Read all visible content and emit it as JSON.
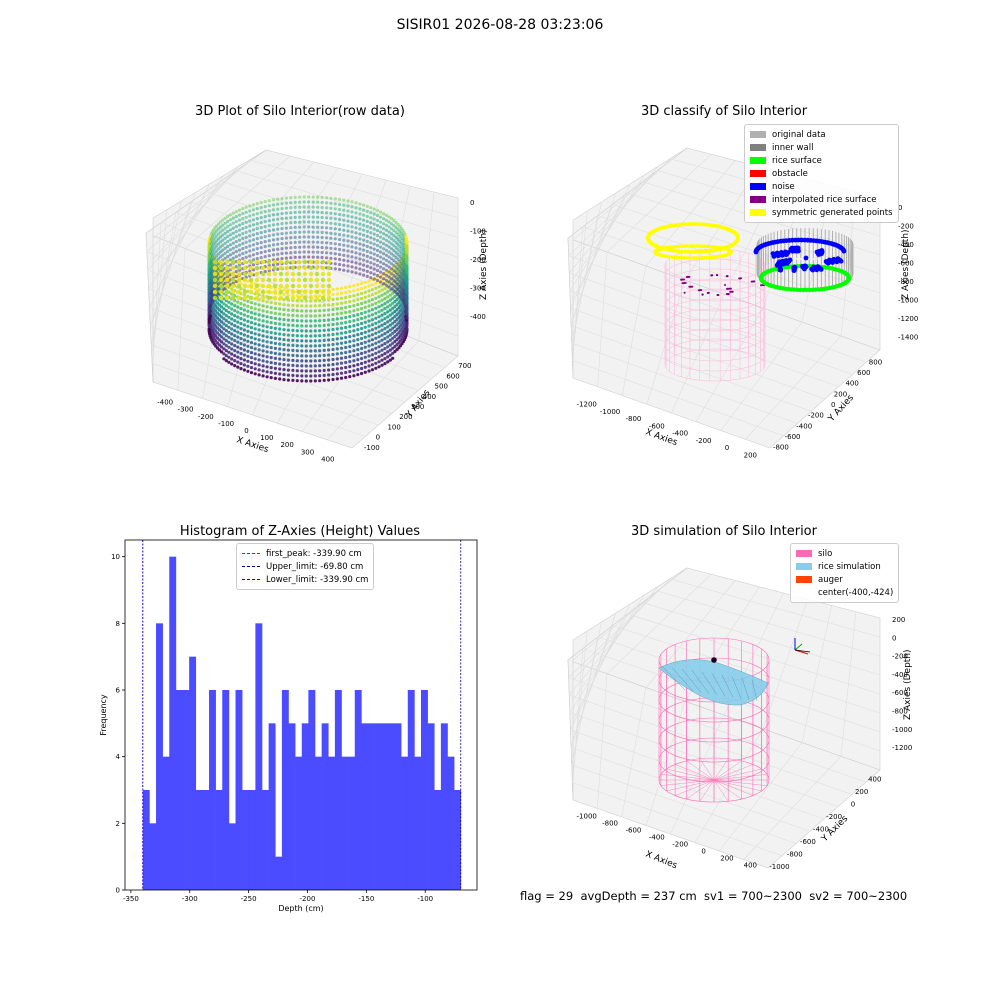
{
  "figure": {
    "suptitle": "SISIR01 2026-08-28 03:23:06",
    "footer": "flag = 29  avgDepth = 237 cm  sv1 = 700~2300  sv2 = 700~2300"
  },
  "chart_data": [
    {
      "type": "scatter",
      "title": "3D Plot of Silo Interior(row data)",
      "xlabel": "X Axies",
      "ylabel": "Y Axies",
      "zlabel": "Z Axies (Depth)",
      "xticks": [
        -400,
        -300,
        -200,
        -100,
        0,
        100,
        200,
        300,
        400
      ],
      "yticks": [
        -100,
        0,
        100,
        200,
        300,
        400,
        500,
        600,
        700
      ],
      "zticks": [
        0,
        -100,
        -200,
        -300,
        -400
      ],
      "colormap": "viridis"
    },
    {
      "type": "scatter",
      "title": "3D classify of Silo Interior",
      "xlabel": "X Axies",
      "ylabel": "Y Axies",
      "zlabel": "Z Axies (Depth)",
      "xticks": [
        -1200,
        -1000,
        -800,
        -600,
        -400,
        -200,
        0,
        200
      ],
      "yticks": [
        -800,
        -600,
        -400,
        -200,
        0,
        200,
        400,
        600,
        800
      ],
      "zticks": [
        0,
        -200,
        -400,
        -600,
        -800,
        -1000,
        -1200,
        -1400
      ],
      "legend": [
        {
          "label": "original data",
          "color": "#b0b0b0"
        },
        {
          "label": "inner wall",
          "color": "#808080"
        },
        {
          "label": "rice surface",
          "color": "#00ff00"
        },
        {
          "label": "obstacle",
          "color": "#ff0000"
        },
        {
          "label": "noise",
          "color": "#0000ff"
        },
        {
          "label": "interpolated rice surface",
          "color": "#800080"
        },
        {
          "label": "symmetric generated points",
          "color": "#ffff00"
        }
      ]
    },
    {
      "type": "bar",
      "title": "Histogram of Z-Axies (Height) Values",
      "xlabel": "Depth (cm)",
      "ylabel": "Frequency",
      "xlim": [
        -355,
        -56
      ],
      "ylim": [
        0,
        10.5
      ],
      "xticks": [
        -350,
        -300,
        -250,
        -200,
        -150,
        -100
      ],
      "yticks": [
        0,
        2,
        4,
        6,
        8,
        10
      ],
      "bin_range": [
        -339.9,
        -69.8
      ],
      "values": [
        3,
        2,
        8,
        4,
        10,
        6,
        6,
        7,
        3,
        3,
        6,
        3,
        6,
        2,
        6,
        3,
        3,
        8,
        3,
        5,
        1,
        6,
        5,
        4,
        5,
        6,
        4,
        5,
        4,
        6,
        4,
        4,
        6,
        5,
        5,
        5,
        5,
        5,
        5,
        4,
        6,
        4,
        6,
        5,
        3,
        5,
        4,
        3
      ],
      "bar_color": "#4b4bff",
      "vlines": [
        {
          "label": "first_peak: -339.90 cm",
          "x": -339.9,
          "color": "#ff0000"
        },
        {
          "label": "Upper_limit: -69.80 cm",
          "x": -69.8,
          "color": "#00008b"
        },
        {
          "label": "Lower_limit: -339.90 cm",
          "x": -339.9,
          "color": "#0000ff"
        }
      ]
    },
    {
      "type": "scatter",
      "title": "3D simulation of Silo Interior",
      "xlabel": "X Axies",
      "ylabel": "Y Axies",
      "zlabel": "Z Axies (Depth)",
      "xticks": [
        -1000,
        -800,
        -600,
        -400,
        -200,
        0,
        200,
        400
      ],
      "yticks": [
        -1000,
        -800,
        -600,
        -400,
        -200,
        0,
        200,
        400
      ],
      "zticks": [
        200,
        0,
        -200,
        -400,
        -600,
        -800,
        -1000,
        -1200
      ],
      "legend": [
        {
          "label": "silo",
          "color": "#ff69b4"
        },
        {
          "label": "rice simulation",
          "color": "#87ceeb"
        },
        {
          "label": "auger",
          "color": "#ff4500"
        },
        {
          "label": "center(-400,-424)",
          "color": "#ffffff"
        }
      ]
    }
  ]
}
